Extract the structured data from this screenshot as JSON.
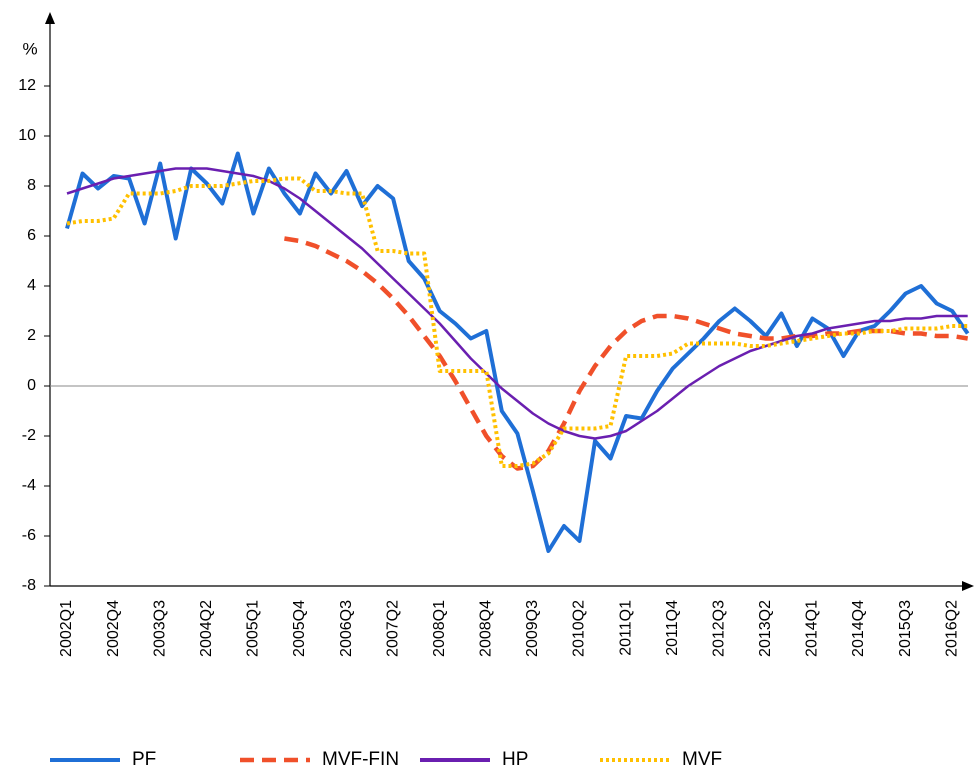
{
  "chart_data": {
    "type": "line",
    "ylabel": "%",
    "categories": [
      "2002Q1",
      null,
      null,
      "2002Q4",
      null,
      null,
      "2003Q3",
      null,
      null,
      "2004Q2",
      null,
      null,
      "2005Q1",
      null,
      null,
      "2005Q4",
      null,
      null,
      "2006Q3",
      null,
      null,
      "2007Q2",
      null,
      null,
      "2008Q1",
      null,
      null,
      "2008Q4",
      null,
      null,
      "2009Q3",
      null,
      null,
      "2010Q2",
      null,
      null,
      "2011Q1",
      null,
      null,
      "2011Q4",
      null,
      null,
      "2012Q3",
      null,
      null,
      "2013Q2",
      null,
      null,
      "2014Q1",
      null,
      null,
      "2014Q4",
      null,
      null,
      "2015Q3",
      null,
      null,
      "2016Q2",
      null
    ],
    "ylim": [
      -8,
      14
    ],
    "yticks": [
      -8,
      -6,
      -4,
      -2,
      0,
      2,
      4,
      6,
      8,
      10,
      12
    ],
    "zero_line": true,
    "legend": "bottom",
    "series": [
      {
        "name": "PF",
        "color": "#1f6fd6",
        "style": "solid",
        "values": [
          6.3,
          8.5,
          7.9,
          8.4,
          8.3,
          6.5,
          8.9,
          5.9,
          8.7,
          8.1,
          7.3,
          9.3,
          6.9,
          8.7,
          7.7,
          6.9,
          8.5,
          7.7,
          8.6,
          7.2,
          8.0,
          7.5,
          5.0,
          4.3,
          3.0,
          2.5,
          1.9,
          2.2,
          -1.0,
          -1.9,
          -4.2,
          -6.6,
          -5.6,
          -6.2,
          -2.2,
          -2.9,
          -1.2,
          -1.3,
          -0.2,
          0.7,
          1.3,
          1.9,
          2.6,
          3.1,
          2.6,
          2.0,
          2.9,
          1.6,
          2.7,
          2.3,
          1.2,
          2.2,
          2.4,
          3.0,
          3.7,
          4.0,
          3.3,
          3.0,
          2.1
        ]
      },
      {
        "name": "MVF-FIN",
        "color": "#f0502a",
        "style": "dashed",
        "values": [
          null,
          null,
          null,
          null,
          null,
          null,
          null,
          null,
          null,
          null,
          null,
          null,
          null,
          null,
          5.9,
          5.8,
          5.6,
          5.3,
          5.0,
          4.6,
          4.1,
          3.5,
          2.8,
          2.0,
          1.2,
          0.2,
          -0.9,
          -2.0,
          -2.8,
          -3.3,
          -3.2,
          -2.6,
          -1.5,
          -0.2,
          0.8,
          1.6,
          2.2,
          2.6,
          2.8,
          2.8,
          2.7,
          2.5,
          2.3,
          2.1,
          2.0,
          1.9,
          1.9,
          2.0,
          2.0,
          2.1,
          2.1,
          2.2,
          2.2,
          2.2,
          2.1,
          2.1,
          2.0,
          2.0,
          1.9
        ]
      },
      {
        "name": "HP",
        "color": "#6a1fb0",
        "style": "solid-thin",
        "values": [
          7.7,
          7.9,
          8.1,
          8.3,
          8.4,
          8.5,
          8.6,
          8.7,
          8.7,
          8.7,
          8.6,
          8.5,
          8.4,
          8.2,
          7.9,
          7.5,
          7.0,
          6.5,
          6.0,
          5.5,
          4.9,
          4.3,
          3.7,
          3.1,
          2.5,
          1.8,
          1.1,
          0.5,
          -0.1,
          -0.6,
          -1.1,
          -1.5,
          -1.8,
          -2.0,
          -2.1,
          -2.0,
          -1.8,
          -1.4,
          -1.0,
          -0.5,
          0,
          0.4,
          0.8,
          1.1,
          1.4,
          1.6,
          1.8,
          2.0,
          2.1,
          2.3,
          2.4,
          2.5,
          2.6,
          2.6,
          2.7,
          2.7,
          2.8,
          2.8,
          2.8
        ]
      },
      {
        "name": "MVF",
        "color": "#ffc000",
        "style": "dotted",
        "values": [
          6.5,
          6.6,
          6.6,
          6.7,
          7.7,
          7.7,
          7.7,
          7.8,
          8.0,
          8.0,
          8.0,
          8.1,
          8.2,
          8.2,
          8.3,
          8.3,
          7.8,
          7.8,
          7.7,
          7.7,
          5.4,
          5.4,
          5.3,
          5.3,
          0.6,
          0.6,
          0.6,
          0.6,
          -3.2,
          -3.2,
          -3.1,
          -2.7,
          -1.7,
          -1.7,
          -1.7,
          -1.6,
          1.2,
          1.2,
          1.2,
          1.3,
          1.7,
          1.7,
          1.7,
          1.7,
          1.6,
          1.6,
          1.7,
          1.8,
          1.9,
          2.0,
          2.1,
          2.1,
          2.2,
          2.2,
          2.3,
          2.3,
          2.3,
          2.4,
          2.4
        ]
      }
    ]
  }
}
